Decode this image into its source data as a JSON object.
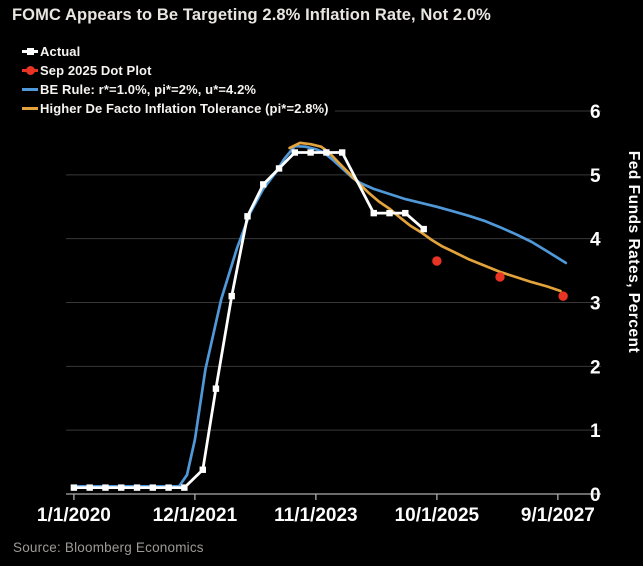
{
  "source": "Source: Bloomberg Economics",
  "colors": {
    "background": "#000000",
    "grid": "#383838",
    "axis": "#adadad",
    "tick_label": "#fdfdfd",
    "title": "#e9e6e1",
    "source_text": "#9c9a97",
    "actual": "#ffffff",
    "dot_plot": "#e93323",
    "be_rule": "#5098d7",
    "tolerance": "#e2a33c"
  },
  "chart_data": {
    "type": "line",
    "title": "FOMC Appears to Be Targeting 2.8% Inflation Rate, Not 2.0%",
    "xlabel": "",
    "ylabel": "Fed Funds Rates, Percent",
    "x_axis": {
      "unit": "months since 1/1/2020",
      "domain": [
        -1.5,
        100.2
      ],
      "ticks": [
        {
          "label": "1/1/2020",
          "m": 0
        },
        {
          "label": "12/1/2021",
          "m": 23
        },
        {
          "label": "11/1/2023",
          "m": 46
        },
        {
          "label": "10/1/2025",
          "m": 69
        },
        {
          "label": "9/1/2027",
          "m": 92
        }
      ]
    },
    "y_axis": {
      "domain": [
        0,
        6
      ],
      "ticks": [
        0,
        1,
        2,
        3,
        4,
        5,
        6
      ],
      "gridlines": [
        1,
        2,
        3,
        4,
        5,
        6
      ]
    },
    "legend_position": "top-left",
    "grid": true,
    "series": [
      {
        "id": "be_rule",
        "name": "BE Rule: r*=1.0%, pi*=2%, u*=4.2%",
        "color": "#5098d7",
        "line": true,
        "width": 2.7,
        "marker": "none",
        "legend_order": 3,
        "points": [
          [
            0,
            0.12
          ],
          [
            20,
            0.12
          ],
          [
            21.5,
            0.3
          ],
          [
            23,
            0.85
          ],
          [
            25,
            1.95
          ],
          [
            28,
            3.05
          ],
          [
            31,
            3.85
          ],
          [
            33.5,
            4.4
          ],
          [
            36,
            4.78
          ],
          [
            38.5,
            5.05
          ],
          [
            40,
            5.25
          ],
          [
            42,
            5.45
          ],
          [
            44,
            5.44
          ],
          [
            46,
            5.4
          ],
          [
            47.5,
            5.35
          ],
          [
            49,
            5.25
          ],
          [
            51,
            5.1
          ],
          [
            53,
            4.95
          ],
          [
            54.5,
            4.87
          ],
          [
            57,
            4.78
          ],
          [
            60,
            4.7
          ],
          [
            63,
            4.62
          ],
          [
            66,
            4.56
          ],
          [
            69,
            4.5
          ],
          [
            72,
            4.43
          ],
          [
            75,
            4.36
          ],
          [
            78,
            4.28
          ],
          [
            81,
            4.18
          ],
          [
            84,
            4.07
          ],
          [
            87,
            3.95
          ],
          [
            90,
            3.8
          ],
          [
            93.5,
            3.62
          ]
        ]
      },
      {
        "id": "tolerance",
        "name": "Higher De Facto Inflation Tolerance (pi*=2.8%)",
        "color": "#e2a33c",
        "line": true,
        "width": 2.7,
        "marker": "none",
        "legend_order": 4,
        "points": [
          [
            41,
            5.42
          ],
          [
            43,
            5.5
          ],
          [
            45,
            5.48
          ],
          [
            47,
            5.44
          ],
          [
            48.5,
            5.35
          ],
          [
            50,
            5.22
          ],
          [
            52,
            5.05
          ],
          [
            54,
            4.88
          ],
          [
            56,
            4.72
          ],
          [
            58,
            4.58
          ],
          [
            60,
            4.47
          ],
          [
            62,
            4.33
          ],
          [
            64,
            4.2
          ],
          [
            66,
            4.1
          ],
          [
            68,
            3.98
          ],
          [
            70,
            3.88
          ],
          [
            72,
            3.8
          ],
          [
            75,
            3.68
          ],
          [
            78,
            3.58
          ],
          [
            81,
            3.48
          ],
          [
            84,
            3.4
          ],
          [
            87,
            3.32
          ],
          [
            90,
            3.25
          ],
          [
            92.5,
            3.18
          ]
        ]
      },
      {
        "id": "actual",
        "name": "Actual",
        "color": "#ffffff",
        "line": true,
        "width": 2.8,
        "marker": "square",
        "legend_order": 1,
        "points": [
          [
            0,
            0.1
          ],
          [
            3,
            0.1
          ],
          [
            6,
            0.1
          ],
          [
            9,
            0.1
          ],
          [
            12,
            0.1
          ],
          [
            15,
            0.1
          ],
          [
            18,
            0.1
          ],
          [
            21,
            0.1
          ],
          [
            24.5,
            0.38
          ],
          [
            27,
            1.65
          ],
          [
            30,
            3.1
          ],
          [
            33,
            4.35
          ],
          [
            36,
            4.85
          ],
          [
            39,
            5.1
          ],
          [
            42,
            5.35
          ],
          [
            45,
            5.35
          ],
          [
            48,
            5.35
          ],
          [
            51,
            5.35
          ],
          [
            57,
            4.4
          ],
          [
            60,
            4.4
          ],
          [
            63,
            4.4
          ],
          [
            66.5,
            4.15
          ]
        ]
      },
      {
        "id": "dot_plot",
        "name": "Sep 2025 Dot Plot",
        "color": "#e93323",
        "line": false,
        "width": 0,
        "marker": "circle",
        "legend_order": 2,
        "points": [
          [
            69,
            3.65
          ],
          [
            81,
            3.4
          ],
          [
            93,
            3.1
          ]
        ]
      }
    ]
  }
}
